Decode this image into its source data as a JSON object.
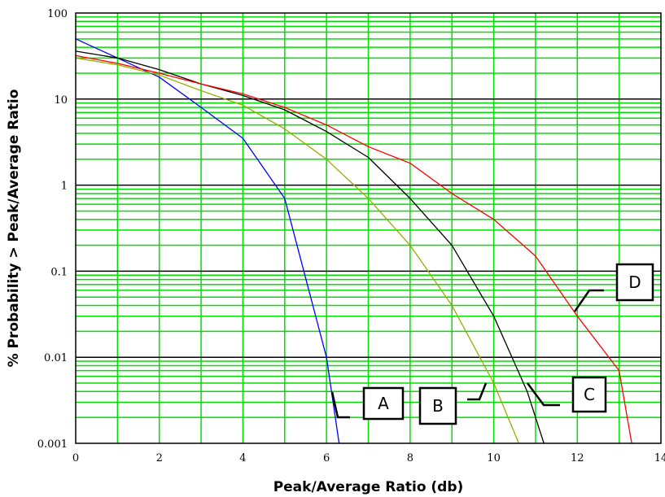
{
  "chart_data": {
    "type": "line",
    "xlabel": "Peak/Average Ratio (db)",
    "ylabel": "% Probability > Peak/Average Ratio",
    "xlim": [
      0,
      14
    ],
    "ylim": [
      0.001,
      100
    ],
    "yscale": "log",
    "grid": true,
    "x_ticks": [
      "0",
      "2",
      "4",
      "6",
      "8",
      "10",
      "12",
      "14"
    ],
    "y_ticks": [
      "0.001",
      "0.01",
      "0.1",
      "1",
      "10",
      "100"
    ],
    "colors": {
      "background": "#ffffff",
      "minor_grid": "#00e000",
      "major_grid": "#000000"
    },
    "series": [
      {
        "label": "A",
        "color": "#0000ff",
        "x": [
          0,
          1,
          2,
          3,
          4,
          5,
          6.0,
          6.3
        ],
        "y": [
          50,
          30,
          18,
          8,
          3.5,
          0.7,
          0.01,
          0.001
        ]
      },
      {
        "label": "B",
        "color": "#99aa00",
        "x": [
          0,
          1,
          2,
          3,
          4,
          5,
          6,
          7,
          8,
          9,
          10,
          10.6
        ],
        "y": [
          30,
          25,
          19,
          12.5,
          8.5,
          4.5,
          2.0,
          0.7,
          0.2,
          0.04,
          0.005,
          0.001
        ]
      },
      {
        "label": "C",
        "color": "#000000",
        "x": [
          0,
          1,
          2,
          3,
          4,
          5,
          6,
          7,
          8,
          9,
          10,
          10.8,
          11.2
        ],
        "y": [
          36,
          30,
          22,
          15,
          11,
          7.5,
          4.2,
          2.1,
          0.7,
          0.2,
          0.03,
          0.004,
          0.001
        ]
      },
      {
        "label": "D",
        "color": "#ff0000",
        "x": [
          0,
          1,
          2,
          3,
          4,
          5,
          6,
          7,
          8,
          9,
          10,
          11,
          12,
          13,
          13.3
        ],
        "y": [
          32,
          26,
          20,
          15,
          11.5,
          8,
          5,
          2.8,
          1.8,
          0.8,
          0.4,
          0.15,
          0.03,
          0.007,
          0.001
        ]
      }
    ]
  }
}
